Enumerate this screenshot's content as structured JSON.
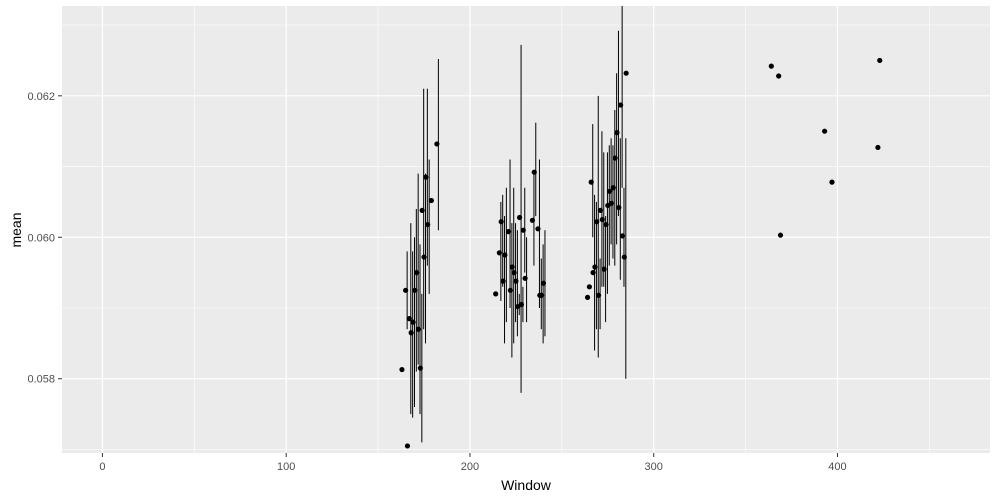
{
  "chart_data": {
    "type": "scatter",
    "title": "",
    "xlabel": "Window",
    "ylabel": "mean",
    "xlim": [
      -22,
      483
    ],
    "ylim": [
      0.05695,
      0.06327
    ],
    "x_ticks": [
      0,
      100,
      200,
      300,
      400
    ],
    "x_tick_labels": [
      "0",
      "100",
      "200",
      "300",
      "400"
    ],
    "y_ticks": [
      0.058,
      0.06,
      0.062
    ],
    "y_tick_labels": [
      "0.058",
      "0.060",
      "0.062"
    ],
    "grid": true,
    "background": "#EBEBEB",
    "grid_color": "#FFFFFF",
    "point_color": "#000000",
    "points": [
      {
        "x": 163,
        "y": 0.05813
      },
      {
        "x": 165,
        "y": 0.05925,
        "lo": 0.0587,
        "hi": 0.0598
      },
      {
        "x": 166,
        "y": 0.05705
      },
      {
        "x": 167,
        "y": 0.05885,
        "lo": 0.0575,
        "hi": 0.0602
      },
      {
        "x": 168,
        "y": 0.05865,
        "lo": 0.05745,
        "hi": 0.0598
      },
      {
        "x": 169,
        "y": 0.0588,
        "lo": 0.0576,
        "hi": 0.06
      },
      {
        "x": 170,
        "y": 0.05925,
        "lo": 0.0581,
        "hi": 0.0604
      },
      {
        "x": 171,
        "y": 0.0595,
        "lo": 0.0582,
        "hi": 0.0609
      },
      {
        "x": 172,
        "y": 0.0587,
        "lo": 0.0575,
        "hi": 0.0599
      },
      {
        "x": 173,
        "y": 0.05815,
        "lo": 0.0571,
        "hi": 0.0592
      },
      {
        "x": 174,
        "y": 0.06038,
        "lo": 0.0587,
        "hi": 0.0621
      },
      {
        "x": 175,
        "y": 0.05972,
        "lo": 0.0585,
        "hi": 0.0609
      },
      {
        "x": 176,
        "y": 0.06085,
        "lo": 0.0596,
        "hi": 0.0621
      },
      {
        "x": 177,
        "y": 0.06018,
        "lo": 0.0592,
        "hi": 0.0611
      },
      {
        "x": 179,
        "y": 0.06052
      },
      {
        "x": 182,
        "y": 0.06132,
        "lo": 0.0601,
        "hi": 0.06252
      },
      {
        "x": 214,
        "y": 0.0592
      },
      {
        "x": 216,
        "y": 0.05978,
        "lo": 0.0591,
        "hi": 0.0605
      },
      {
        "x": 217,
        "y": 0.06022,
        "lo": 0.0593,
        "hi": 0.0606
      },
      {
        "x": 218,
        "y": 0.05938,
        "lo": 0.0585,
        "hi": 0.0603
      },
      {
        "x": 219,
        "y": 0.05975,
        "lo": 0.0588,
        "hi": 0.0607
      },
      {
        "x": 221,
        "y": 0.06008,
        "lo": 0.059,
        "hi": 0.0611
      },
      {
        "x": 222,
        "y": 0.05925,
        "lo": 0.0583,
        "hi": 0.0602
      },
      {
        "x": 223,
        "y": 0.05958,
        "lo": 0.0585,
        "hi": 0.0607
      },
      {
        "x": 224,
        "y": 0.0595,
        "lo": 0.0588,
        "hi": 0.0602
      },
      {
        "x": 225,
        "y": 0.05938,
        "lo": 0.0586,
        "hi": 0.0601
      },
      {
        "x": 226,
        "y": 0.05902,
        "lo": 0.0589,
        "hi": 0.0592
      },
      {
        "x": 227,
        "y": 0.06028,
        "lo": 0.0578,
        "hi": 0.06272
      },
      {
        "x": 228,
        "y": 0.05905,
        "lo": 0.0588,
        "hi": 0.0593
      },
      {
        "x": 229,
        "y": 0.0601,
        "lo": 0.0595,
        "hi": 0.0607
      },
      {
        "x": 230,
        "y": 0.05942,
        "lo": 0.0588,
        "hi": 0.06
      },
      {
        "x": 234,
        "y": 0.06024,
        "lo": 0.0596,
        "hi": 0.0609
      },
      {
        "x": 235,
        "y": 0.06092,
        "lo": 0.0603,
        "hi": 0.06162
      },
      {
        "x": 237,
        "y": 0.06012,
        "lo": 0.059,
        "hi": 0.0611
      },
      {
        "x": 238,
        "y": 0.05918,
        "lo": 0.0587,
        "hi": 0.0597
      },
      {
        "x": 239,
        "y": 0.05918,
        "lo": 0.0585,
        "hi": 0.0599
      },
      {
        "x": 240,
        "y": 0.05935,
        "lo": 0.0586,
        "hi": 0.0601
      },
      {
        "x": 264,
        "y": 0.05915
      },
      {
        "x": 265,
        "y": 0.0593
      },
      {
        "x": 266,
        "y": 0.06078,
        "lo": 0.06,
        "hi": 0.0616
      },
      {
        "x": 267,
        "y": 0.0595,
        "lo": 0.0584,
        "hi": 0.0606
      },
      {
        "x": 268,
        "y": 0.05958,
        "lo": 0.0587,
        "hi": 0.0605
      },
      {
        "x": 269,
        "y": 0.06022,
        "lo": 0.0583,
        "hi": 0.062
      },
      {
        "x": 270,
        "y": 0.05918,
        "lo": 0.0587,
        "hi": 0.0597
      },
      {
        "x": 271,
        "y": 0.06038,
        "lo": 0.0593,
        "hi": 0.0615
      },
      {
        "x": 272,
        "y": 0.06025,
        "lo": 0.0593,
        "hi": 0.0612
      },
      {
        "x": 273,
        "y": 0.05955,
        "lo": 0.0588,
        "hi": 0.0603
      },
      {
        "x": 274,
        "y": 0.06018,
        "lo": 0.0592,
        "hi": 0.0612
      },
      {
        "x": 275,
        "y": 0.06045,
        "lo": 0.0596,
        "hi": 0.0613
      },
      {
        "x": 276,
        "y": 0.06065,
        "lo": 0.0599,
        "hi": 0.0614
      },
      {
        "x": 277,
        "y": 0.06048,
        "lo": 0.0597,
        "hi": 0.0613
      },
      {
        "x": 278,
        "y": 0.0607,
        "lo": 0.0596,
        "hi": 0.0618
      },
      {
        "x": 279,
        "y": 0.06112,
        "lo": 0.0599,
        "hi": 0.06232
      },
      {
        "x": 280,
        "y": 0.06148,
        "lo": 0.0603,
        "hi": 0.06292
      },
      {
        "x": 281,
        "y": 0.06042,
        "lo": 0.0594,
        "hi": 0.0614
      },
      {
        "x": 282,
        "y": 0.06187,
        "lo": 0.0607,
        "hi": 0.06327
      },
      {
        "x": 283,
        "y": 0.06002,
        "lo": 0.0593,
        "hi": 0.0607
      },
      {
        "x": 284,
        "y": 0.05972,
        "lo": 0.058,
        "hi": 0.0614
      },
      {
        "x": 285,
        "y": 0.06232
      },
      {
        "x": 364,
        "y": 0.06242
      },
      {
        "x": 368,
        "y": 0.06228
      },
      {
        "x": 369,
        "y": 0.06003
      },
      {
        "x": 393,
        "y": 0.0615
      },
      {
        "x": 397,
        "y": 0.06078
      },
      {
        "x": 422,
        "y": 0.06127
      },
      {
        "x": 423,
        "y": 0.0625
      }
    ]
  }
}
